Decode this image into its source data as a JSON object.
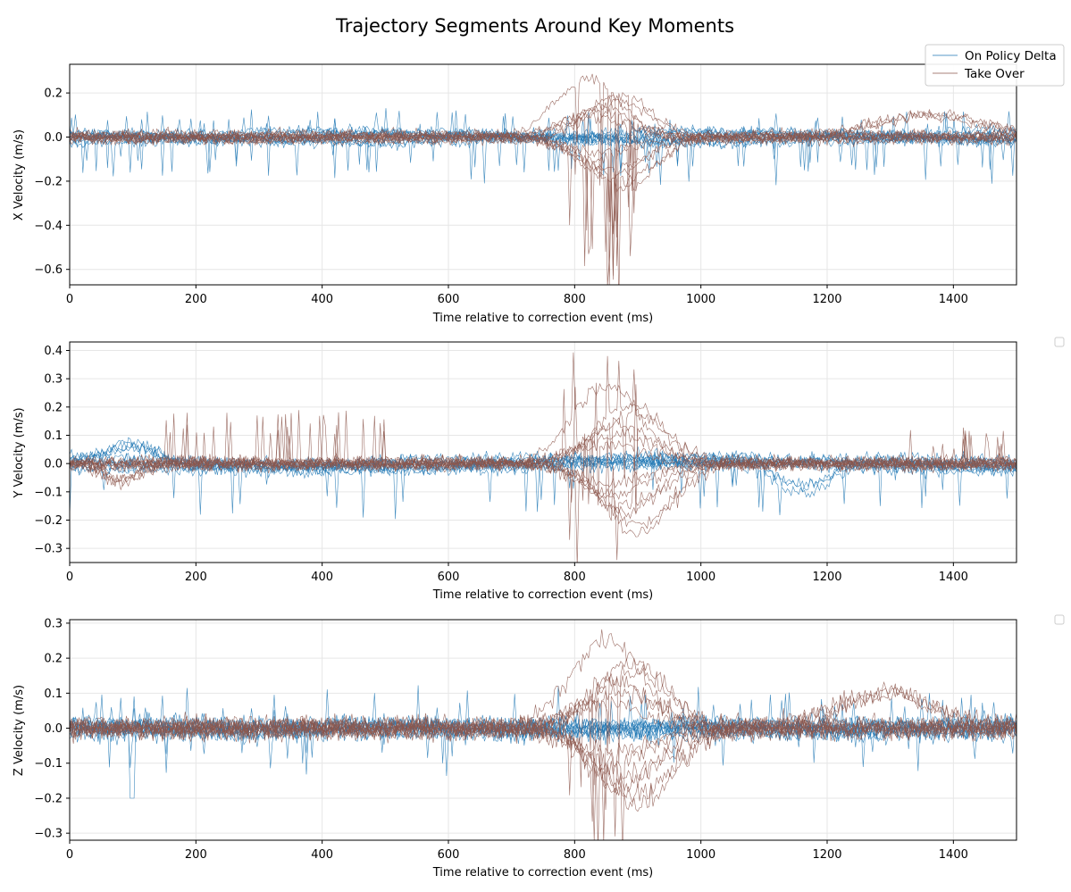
{
  "chart_data": {
    "type": "line",
    "title": "Trajectory Segments Around Key Moments",
    "legend": {
      "placement": "top-right",
      "entries": [
        {
          "name": "On Policy Delta",
          "color": "#1f77b4"
        },
        {
          "name": "Take Over",
          "color": "#8c564b"
        }
      ]
    },
    "subplots": [
      {
        "id": "x",
        "xlabel": "Time relative to correction event (ms)",
        "ylabel": "X Velocity (m/s)",
        "xlim": [
          0,
          1500
        ],
        "ylim": [
          -0.67,
          0.33
        ],
        "xticks": [
          0,
          200,
          400,
          600,
          800,
          1000,
          1200,
          1400
        ],
        "yticks": [
          -0.6,
          -0.4,
          -0.2,
          0.0,
          0.2
        ],
        "ytick_labels": [
          "−0.6",
          "−0.4",
          "−0.2",
          "0.0",
          "0.2"
        ],
        "grid": true,
        "series": [
          {
            "name": "On Policy Delta",
            "color": "#1f77b4",
            "summary": "dense noisy band about ±0.05 m/s across 0–1500 ms, occasional dips to about −0.19"
          },
          {
            "name": "Take Over",
            "color": "#8c564b",
            "summary": "band about ±0.05 m/s with a correction bump between ~720–1000 ms peaking near 0.28 and dipping to about −0.62 around 830 ms; late drift up to ~0.14 near 1300–1450 ms"
          }
        ]
      },
      {
        "id": "y",
        "xlabel": "Time relative to correction event (ms)",
        "ylabel": "Y Velocity (m/s)",
        "xlim": [
          0,
          1500
        ],
        "ylim": [
          -0.35,
          0.43
        ],
        "xticks": [
          0,
          200,
          400,
          600,
          800,
          1000,
          1200,
          1400
        ],
        "yticks": [
          -0.3,
          -0.2,
          -0.1,
          0.0,
          0.1,
          0.2,
          0.3,
          0.4
        ],
        "ytick_labels": [
          "−0.3",
          "−0.2",
          "−0.1",
          "0.0",
          "0.1",
          "0.2",
          "0.3",
          "0.4"
        ],
        "grid": true,
        "series": [
          {
            "name": "On Policy Delta",
            "color": "#1f77b4",
            "summary": "band about ±0.06 m/s with bumps near 100 ms (~0.12) and dips near 1150 ms (~−0.2)"
          },
          {
            "name": "Take Over",
            "color": "#8c564b",
            "summary": "spikes up to ~0.19 between 150–500 ms; correction bump ~740–1000 ms peaking near 0.39 and dipping to about −0.31"
          }
        ]
      },
      {
        "id": "z",
        "xlabel": "Time relative to correction event (ms)",
        "ylabel": "Z Velocity (m/s)",
        "xlim": [
          0,
          1500
        ],
        "ylim": [
          -0.32,
          0.31
        ],
        "xticks": [
          0,
          200,
          400,
          600,
          800,
          1000,
          1200,
          1400
        ],
        "yticks": [
          -0.3,
          -0.2,
          -0.1,
          0.0,
          0.1,
          0.2,
          0.3
        ],
        "ytick_labels": [
          "−0.3",
          "−0.2",
          "−0.1",
          "0.0",
          "0.1",
          "0.2",
          "0.3"
        ],
        "grid": true,
        "series": [
          {
            "name": "On Policy Delta",
            "color": "#1f77b4",
            "summary": "dense band about ±0.06 m/s, spike to about −0.21 near 100 ms"
          },
          {
            "name": "Take Over",
            "color": "#8c564b",
            "summary": "band about ±0.06 m/s; correction bump ~760–1000 ms peaking near 0.28 and dipping to about −0.29; late bump ~0.14 near 1280 ms"
          }
        ]
      }
    ]
  },
  "colors": {
    "on_policy": "#1f77b4",
    "take_over": "#8c564b",
    "grid": "#e6e6e6"
  }
}
